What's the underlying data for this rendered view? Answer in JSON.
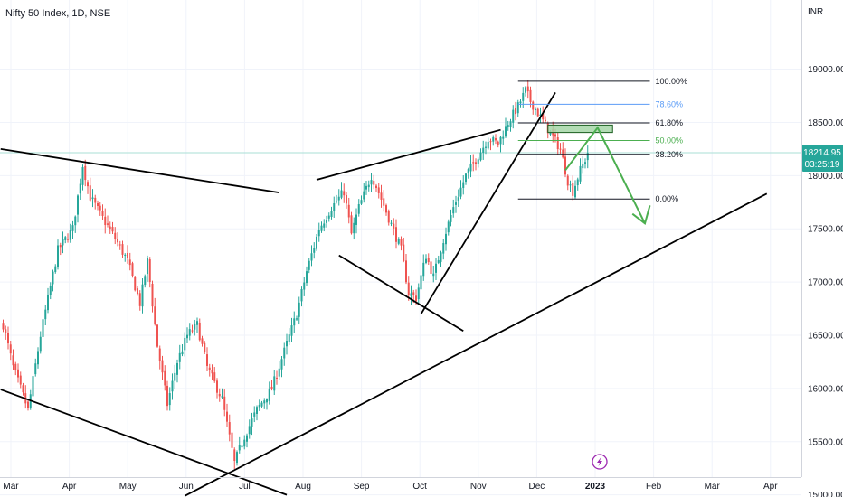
{
  "header": {
    "title": "Nifty 50 Index, 1D, NSE",
    "currency": "INR"
  },
  "colors": {
    "up": "#26a69a",
    "down": "#ef5350",
    "trendline": "#000000",
    "fib_line": "#131722",
    "fib_786": "#5b9cf6",
    "fib_50": "#4caf50",
    "arrow": "#4caf50",
    "zone_fill": "#a5d6a7",
    "zone_stroke": "#1b5e20",
    "price_tag": "#26a69a",
    "price_line": "#a9dfd6",
    "lightning": "#9c27b0"
  },
  "chart_data": {
    "type": "candlestick",
    "title": "Nifty 50 Index, 1D, NSE",
    "ylabel": "INR",
    "ylim": [
      14980,
      19650
    ],
    "y_ticks": [
      "19000.00",
      "18500.00",
      "18000.00",
      "17500.00",
      "17000.00",
      "16500.00",
      "16000.00",
      "15500.00",
      "15000.00"
    ],
    "x_ticks": [
      {
        "label": "Mar",
        "bold": false
      },
      {
        "label": "Apr",
        "bold": false
      },
      {
        "label": "May",
        "bold": false
      },
      {
        "label": "Jun",
        "bold": false
      },
      {
        "label": "Jul",
        "bold": false
      },
      {
        "label": "Aug",
        "bold": false
      },
      {
        "label": "Sep",
        "bold": false
      },
      {
        "label": "Oct",
        "bold": false
      },
      {
        "label": "Nov",
        "bold": false
      },
      {
        "label": "Dec",
        "bold": false
      },
      {
        "label": "2023",
        "bold": true
      },
      {
        "label": "Feb",
        "bold": false
      },
      {
        "label": "Mar",
        "bold": false
      },
      {
        "label": "Apr",
        "bold": false
      }
    ],
    "last_price": "18214.95",
    "last_price_value": 18214.95,
    "countdown": "03:25:19",
    "price_anchors": [
      {
        "d": 0,
        "p": 16600
      },
      {
        "d": 4,
        "p": 16200
      },
      {
        "d": 10,
        "p": 15800
      },
      {
        "d": 15,
        "p": 16500
      },
      {
        "d": 22,
        "p": 17300
      },
      {
        "d": 28,
        "p": 17500
      },
      {
        "d": 32,
        "p": 18100
      },
      {
        "d": 35,
        "p": 17800
      },
      {
        "d": 40,
        "p": 17600
      },
      {
        "d": 44,
        "p": 17450
      },
      {
        "d": 50,
        "p": 17200
      },
      {
        "d": 55,
        "p": 16800
      },
      {
        "d": 58,
        "p": 17200
      },
      {
        "d": 62,
        "p": 16400
      },
      {
        "d": 66,
        "p": 15850
      },
      {
        "d": 70,
        "p": 16250
      },
      {
        "d": 74,
        "p": 16500
      },
      {
        "d": 78,
        "p": 16600
      },
      {
        "d": 82,
        "p": 16200
      },
      {
        "d": 88,
        "p": 15900
      },
      {
        "d": 93,
        "p": 15300
      },
      {
        "d": 97,
        "p": 15550
      },
      {
        "d": 102,
        "p": 15800
      },
      {
        "d": 108,
        "p": 16000
      },
      {
        "d": 113,
        "p": 16350
      },
      {
        "d": 118,
        "p": 16700
      },
      {
        "d": 122,
        "p": 17100
      },
      {
        "d": 127,
        "p": 17500
      },
      {
        "d": 132,
        "p": 17700
      },
      {
        "d": 137,
        "p": 17850
      },
      {
        "d": 140,
        "p": 17450
      },
      {
        "d": 143,
        "p": 17700
      },
      {
        "d": 148,
        "p": 18000
      },
      {
        "d": 150,
        "p": 17900
      },
      {
        "d": 155,
        "p": 17600
      },
      {
        "d": 160,
        "p": 17300
      },
      {
        "d": 163,
        "p": 16900
      },
      {
        "d": 166,
        "p": 16850
      },
      {
        "d": 170,
        "p": 17250
      },
      {
        "d": 173,
        "p": 17050
      },
      {
        "d": 177,
        "p": 17400
      },
      {
        "d": 181,
        "p": 17700
      },
      {
        "d": 186,
        "p": 18000
      },
      {
        "d": 190,
        "p": 18150
      },
      {
        "d": 195,
        "p": 18350
      },
      {
        "d": 199,
        "p": 18300
      },
      {
        "d": 203,
        "p": 18500
      },
      {
        "d": 207,
        "p": 18650
      },
      {
        "d": 210,
        "p": 18800
      },
      {
        "d": 212,
        "p": 18700
      },
      {
        "d": 216,
        "p": 18550
      },
      {
        "d": 220,
        "p": 18400
      },
      {
        "d": 224,
        "p": 18250
      },
      {
        "d": 227,
        "p": 17950
      },
      {
        "d": 229,
        "p": 17850
      },
      {
        "d": 232,
        "p": 18050
      },
      {
        "d": 235,
        "p": 18200
      }
    ],
    "fib": {
      "x_start_day": 207,
      "x_end_day": 260,
      "levels": [
        {
          "label": "100.00%",
          "price": 18887,
          "color_key": "fib_line"
        },
        {
          "label": "78.60%",
          "price": 18670,
          "color_key": "fib_786"
        },
        {
          "label": "61.80%",
          "price": 18495,
          "color_key": "fib_line"
        },
        {
          "label": "50.00%",
          "price": 18330,
          "color_key": "fib_50"
        },
        {
          "label": "38.20%",
          "price": 18200,
          "color_key": "fib_line"
        },
        {
          "label": "0.00%",
          "price": 17780,
          "color_key": "fib_line"
        }
      ]
    },
    "zone": {
      "day_start": 219,
      "day_end": 245,
      "price_low": 18405,
      "price_high": 18475
    },
    "arrow": {
      "points": [
        {
          "d": 226,
          "p": 18050
        },
        {
          "d": 239,
          "p": 18450
        },
        {
          "d": 258,
          "p": 17550
        }
      ],
      "head": [
        {
          "d": 253,
          "p": 17640
        },
        {
          "d": 258,
          "p": 17550
        },
        {
          "d": 260,
          "p": 17720
        }
      ]
    },
    "trendlines": [
      {
        "from": {
          "d": -1,
          "p": 18250
        },
        "to": {
          "d": 111,
          "p": 17840
        }
      },
      {
        "from": {
          "d": -1,
          "p": 15990
        },
        "to": {
          "d": 114,
          "p": 15000
        }
      },
      {
        "from": {
          "d": 73,
          "p": 14990
        },
        "to": {
          "d": 307,
          "p": 17830
        }
      },
      {
        "from": {
          "d": 126,
          "p": 17960
        },
        "to": {
          "d": 200,
          "p": 18430
        }
      },
      {
        "from": {
          "d": 135,
          "p": 17250
        },
        "to": {
          "d": 185,
          "p": 16540
        }
      },
      {
        "from": {
          "d": 168,
          "p": 16700
        },
        "to": {
          "d": 222,
          "p": 18780
        }
      }
    ]
  }
}
